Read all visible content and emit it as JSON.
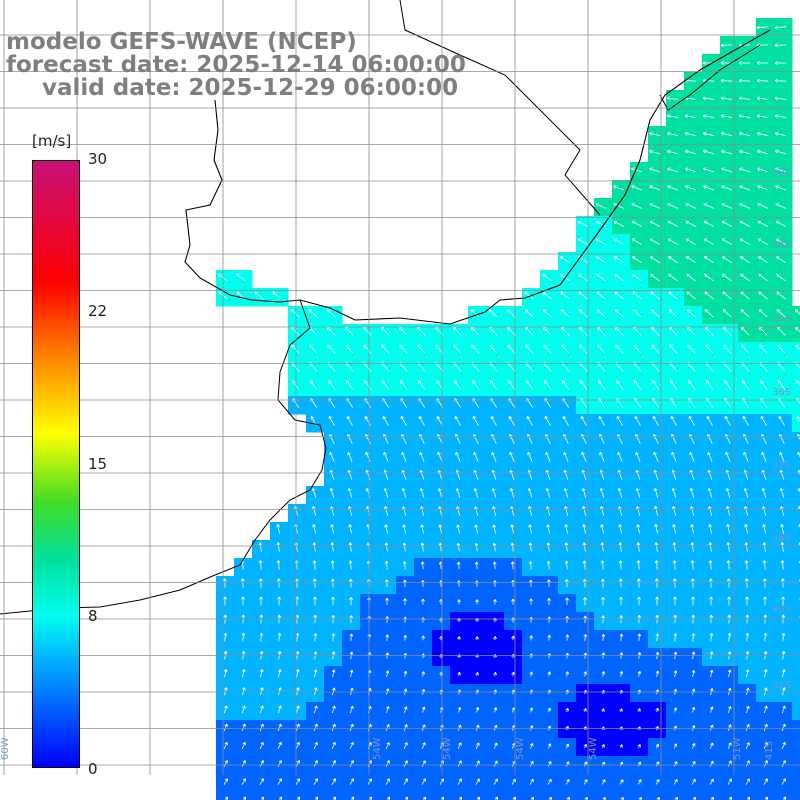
{
  "header": {
    "line1": "modelo GEFS-WAVE (NCEP)",
    "line2": "forecast date: 2025-12-14 06:00:00",
    "line3": "valid date: 2025-12-29 06:00:00"
  },
  "colorbar": {
    "unit": "[m/s]",
    "ticks": [
      {
        "label": "30",
        "value": 30
      },
      {
        "label": "22",
        "value": 22
      },
      {
        "label": "15",
        "value": 15
      },
      {
        "label": "8",
        "value": 8
      },
      {
        "label": "0",
        "value": 0
      }
    ],
    "colors": [
      "#0000ff",
      "#0064ff",
      "#00b4ff",
      "#00ffee",
      "#00e0a0",
      "#44dd22",
      "#ffff00",
      "#ff8a00",
      "#ff0000",
      "#c8107a"
    ]
  },
  "grid_labels": {
    "latitudes": [
      "33S",
      "34S",
      "35S",
      "36S",
      "37S",
      "38S",
      "40S",
      "41S"
    ],
    "longitudes": [
      "60W",
      "54W",
      "54W",
      "54W",
      "54W",
      "51W",
      "41S"
    ]
  },
  "map": {
    "field": "wind speed with direction arrows",
    "land_color": "#ffffff",
    "coast_color": "#000000",
    "grid_color": "#8c8c8c",
    "arrow_color": "#ffffff"
  }
}
